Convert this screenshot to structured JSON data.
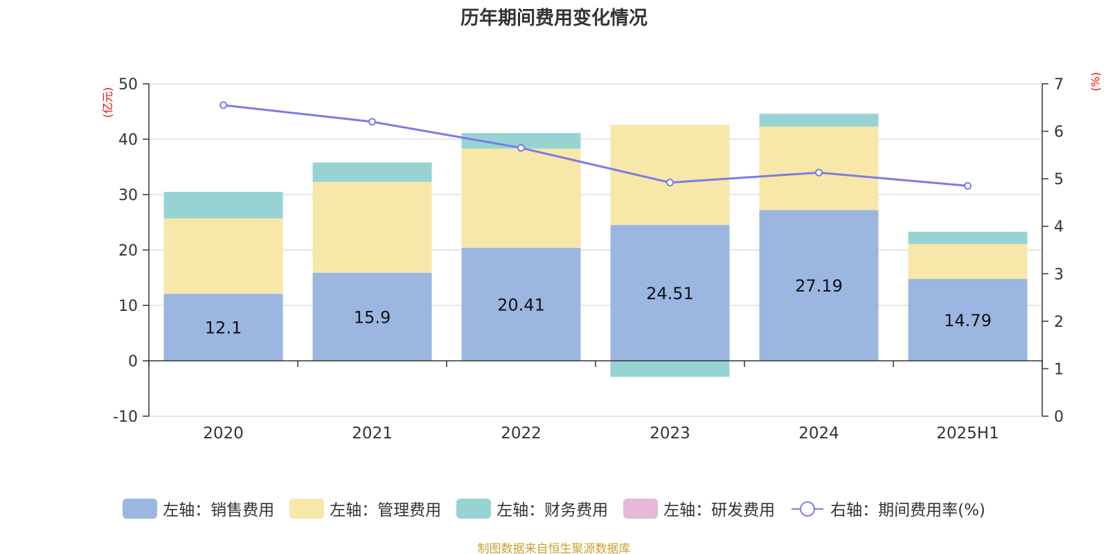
{
  "colors": {
    "sales": "#9bb6e0",
    "admin": "#f7e7a8",
    "finance": "#97d3d3",
    "rnd": "#e6b8d9",
    "rate_line": "#7b7be8",
    "axis_unit": "#ff0000",
    "source": "#c8a032",
    "axis_text": "#333333",
    "grid": "#cccccc"
  },
  "chart_data": {
    "type": "bar",
    "title": "历年期间费用变化情况",
    "left_axis_unit": "(亿元)",
    "right_axis_unit": "(%)",
    "categories": [
      "2020",
      "2021",
      "2022",
      "2023",
      "2024",
      "2025H1"
    ],
    "left_ylim": [
      -10,
      50
    ],
    "left_yticks": [
      -10,
      0,
      10,
      20,
      30,
      40,
      50
    ],
    "right_ylim": [
      0,
      7
    ],
    "right_yticks": [
      0,
      1,
      2,
      3,
      4,
      5,
      6,
      7
    ],
    "grid": true,
    "legend_position": "bottom",
    "stacked": true,
    "series": [
      {
        "key": "sales",
        "name": "左轴：销售费用",
        "axis": "left",
        "values": [
          12.1,
          15.9,
          20.41,
          24.51,
          27.19,
          14.79
        ],
        "labels": [
          "12.1",
          "15.9",
          "20.41",
          "24.51",
          "27.19",
          "14.79"
        ]
      },
      {
        "key": "admin",
        "name": "左轴：管理费用",
        "axis": "left",
        "values": [
          13.6,
          16.4,
          17.9,
          18.1,
          15.1,
          6.3
        ]
      },
      {
        "key": "finance",
        "name": "左轴：财务费用",
        "axis": "left",
        "values": [
          4.8,
          3.5,
          2.8,
          -2.9,
          2.3,
          2.2
        ]
      },
      {
        "key": "rnd",
        "name": "左轴：研发费用",
        "axis": "left",
        "values": [
          0,
          0,
          0,
          0,
          0,
          0
        ]
      },
      {
        "key": "rate",
        "name": "右轴：期间费用率(%)",
        "axis": "right",
        "type": "line",
        "values": [
          6.55,
          6.2,
          5.65,
          4.92,
          5.13,
          4.85
        ]
      }
    ]
  },
  "source_text": "制图数据来自恒生聚源数据库"
}
